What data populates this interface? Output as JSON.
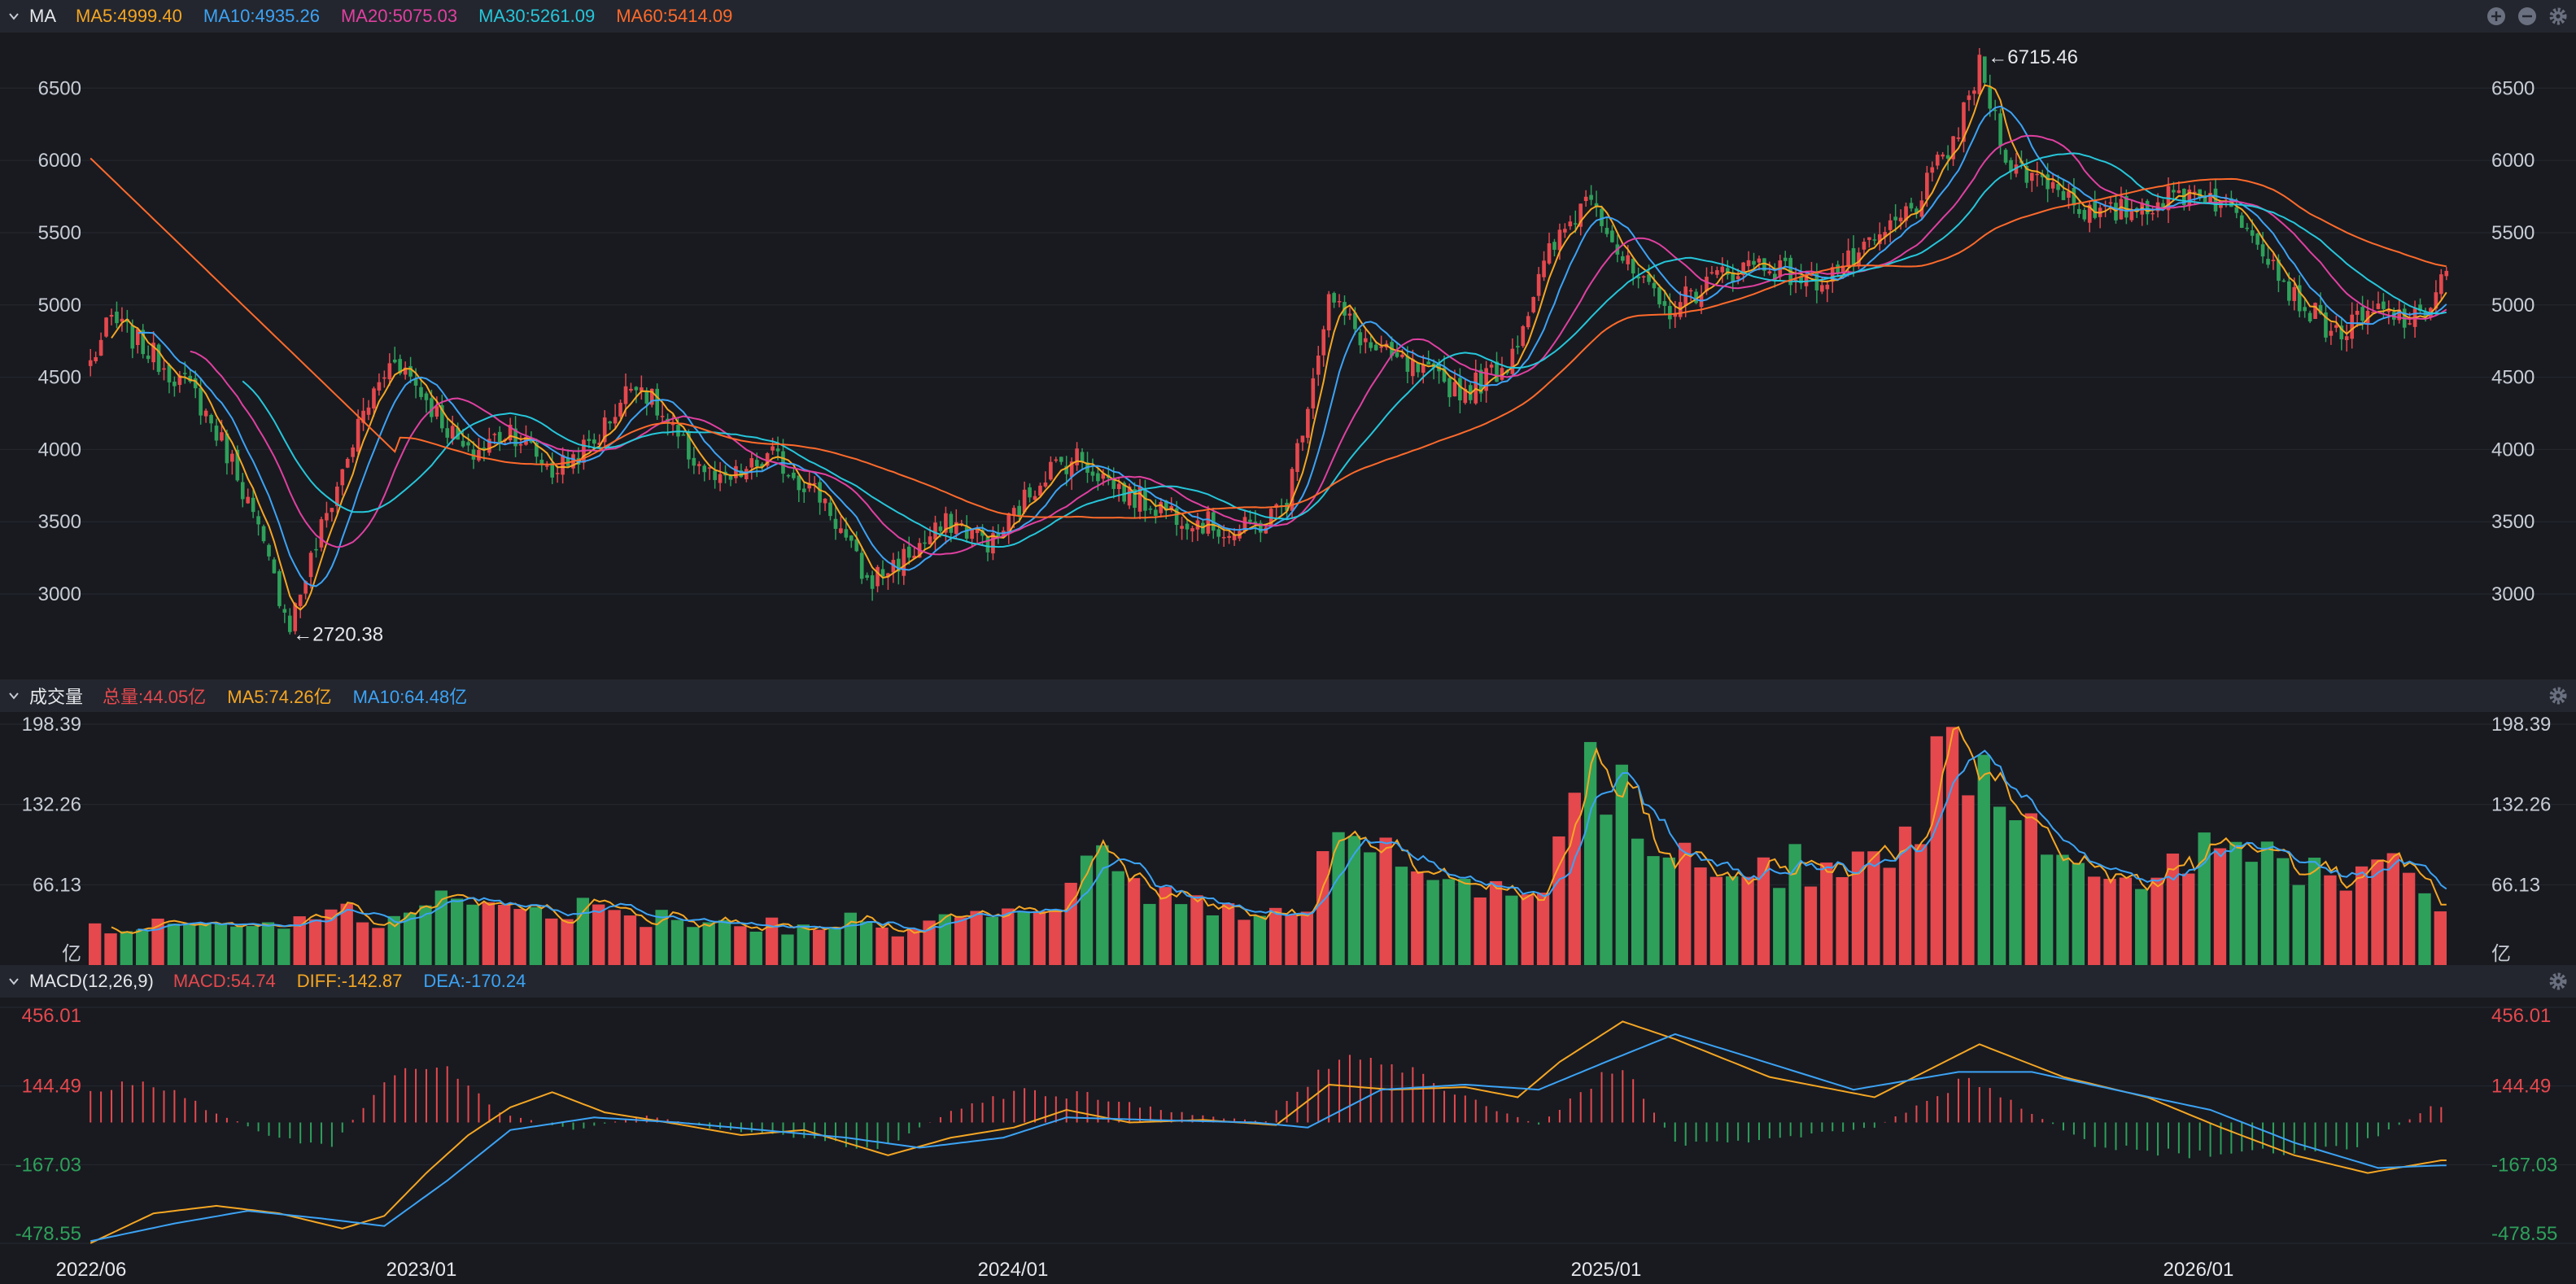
{
  "colors": {
    "bg": "#181a20",
    "bar": "#23262e",
    "grid": "#262931",
    "up": "#e5484d",
    "down": "#2ea05a",
    "text": "#c8ccd4",
    "ma5": "#f5a623",
    "ma10": "#3ca3f5",
    "ma20": "#e040a0",
    "ma30": "#26c6da",
    "ma60": "#ff6a2b",
    "diff": "#f5a623",
    "dea": "#3ca3f5",
    "macd_pos": "#e5484d",
    "macd_neg": "#2ea05a"
  },
  "main_panel": {
    "title": "MA",
    "legend": [
      {
        "label": "MA5:4999.40",
        "color": "#f5a623"
      },
      {
        "label": "MA10:4935.26",
        "color": "#3ca3f5"
      },
      {
        "label": "MA20:5075.03",
        "color": "#e040a0"
      },
      {
        "label": "MA30:5261.09",
        "color": "#26c6da"
      },
      {
        "label": "MA60:5414.09",
        "color": "#ff6a2b"
      }
    ],
    "controls": [
      "plus-icon",
      "minus-icon",
      "gear-icon"
    ],
    "high_label": "←6715.46",
    "low_label": "←2720.38"
  },
  "volume_panel": {
    "title": "成交量",
    "legend": [
      {
        "label": "总量:44.05亿",
        "color": "#e5484d"
      },
      {
        "label": "MA5:74.26亿",
        "color": "#f5a623"
      },
      {
        "label": "MA10:64.48亿",
        "color": "#3ca3f5"
      }
    ],
    "unit": "亿"
  },
  "macd_panel": {
    "title": "MACD(12,26,9)",
    "legend": [
      {
        "label": "MACD:54.74",
        "color": "#e5484d"
      },
      {
        "label": "DIFF:-142.87",
        "color": "#f5a623"
      },
      {
        "label": "DEA:-170.24",
        "color": "#3ca3f5"
      }
    ]
  },
  "chart_data": {
    "type": "candlestick",
    "x_labels": [
      "2022/06",
      "2023/01",
      "2024/01",
      "2025/01",
      "2026/01"
    ],
    "price_axis": {
      "ticks": [
        "6500",
        "6000",
        "5500",
        "5000",
        "4500",
        "4000",
        "3500",
        "3000"
      ],
      "range": [
        2550,
        6800
      ]
    },
    "volume_axis": {
      "ticks": [
        "198.39",
        "132.26",
        "66.13"
      ],
      "range": [
        0,
        198.39
      ]
    },
    "macd_axis": {
      "ticks": [
        "456.01",
        "144.49",
        "-167.03",
        "-478.55"
      ],
      "tick_colors": [
        "#e5484d",
        "#e5484d",
        "#2ea05a",
        "#2ea05a"
      ],
      "range": [
        -478.55,
        456.01
      ]
    },
    "high": 6715.46,
    "low": 2720.38,
    "price_anchors": [
      [
        0,
        4600
      ],
      [
        4,
        4900
      ],
      [
        12,
        4650
      ],
      [
        20,
        4380
      ],
      [
        28,
        3850
      ],
      [
        34,
        3200
      ],
      [
        38,
        2800
      ],
      [
        44,
        3450
      ],
      [
        52,
        4250
      ],
      [
        58,
        4650
      ],
      [
        66,
        4250
      ],
      [
        72,
        3950
      ],
      [
        80,
        4150
      ],
      [
        88,
        3850
      ],
      [
        96,
        4050
      ],
      [
        104,
        4500
      ],
      [
        112,
        4050
      ],
      [
        120,
        3750
      ],
      [
        130,
        3950
      ],
      [
        140,
        3650
      ],
      [
        148,
        3080
      ],
      [
        155,
        3250
      ],
      [
        164,
        3500
      ],
      [
        172,
        3350
      ],
      [
        182,
        3850
      ],
      [
        188,
        3950
      ],
      [
        198,
        3680
      ],
      [
        208,
        3550
      ],
      [
        218,
        3420
      ],
      [
        224,
        3500
      ],
      [
        228,
        3650
      ],
      [
        236,
        5050
      ],
      [
        244,
        4700
      ],
      [
        252,
        4550
      ],
      [
        262,
        4400
      ],
      [
        270,
        4600
      ],
      [
        278,
        5350
      ],
      [
        286,
        5800
      ],
      [
        292,
        5300
      ],
      [
        300,
        4950
      ],
      [
        310,
        5200
      ],
      [
        318,
        5300
      ],
      [
        328,
        5150
      ],
      [
        338,
        5350
      ],
      [
        348,
        5700
      ],
      [
        356,
        6200
      ],
      [
        360,
        6650
      ],
      [
        366,
        5950
      ],
      [
        374,
        5850
      ],
      [
        382,
        5600
      ],
      [
        392,
        5700
      ],
      [
        402,
        5800
      ],
      [
        412,
        5550
      ],
      [
        420,
        5050
      ],
      [
        428,
        4800
      ],
      [
        436,
        4950
      ],
      [
        444,
        4880
      ],
      [
        448,
        5200
      ]
    ],
    "volume_anchors": [
      [
        0,
        28
      ],
      [
        20,
        30
      ],
      [
        36,
        32
      ],
      [
        48,
        48
      ],
      [
        56,
        40
      ],
      [
        64,
        50
      ],
      [
        72,
        55
      ],
      [
        82,
        42
      ],
      [
        96,
        45
      ],
      [
        108,
        38
      ],
      [
        124,
        33
      ],
      [
        140,
        32
      ],
      [
        156,
        37
      ],
      [
        170,
        40
      ],
      [
        182,
        45
      ],
      [
        192,
        90
      ],
      [
        200,
        70
      ],
      [
        210,
        55
      ],
      [
        222,
        45
      ],
      [
        230,
        42
      ],
      [
        236,
        110
      ],
      [
        244,
        85
      ],
      [
        254,
        80
      ],
      [
        264,
        72
      ],
      [
        276,
        60
      ],
      [
        286,
        160
      ],
      [
        294,
        120
      ],
      [
        302,
        85
      ],
      [
        312,
        82
      ],
      [
        322,
        80
      ],
      [
        336,
        85
      ],
      [
        348,
        95
      ],
      [
        356,
        190
      ],
      [
        362,
        140
      ],
      [
        370,
        95
      ],
      [
        382,
        80
      ],
      [
        392,
        75
      ],
      [
        404,
        85
      ],
      [
        416,
        82
      ],
      [
        428,
        75
      ],
      [
        440,
        82
      ],
      [
        448,
        45
      ]
    ],
    "macd_anchors": [
      [
        0,
        130
      ],
      [
        10,
        180
      ],
      [
        22,
        60
      ],
      [
        36,
        -70
      ],
      [
        46,
        -100
      ],
      [
        56,
        180
      ],
      [
        64,
        260
      ],
      [
        70,
        210
      ],
      [
        78,
        40
      ],
      [
        92,
        -30
      ],
      [
        106,
        30
      ],
      [
        120,
        -30
      ],
      [
        136,
        -60
      ],
      [
        150,
        -120
      ],
      [
        164,
        50
      ],
      [
        176,
        130
      ],
      [
        190,
        110
      ],
      [
        210,
        30
      ],
      [
        224,
        5
      ],
      [
        236,
        250
      ],
      [
        248,
        240
      ],
      [
        260,
        120
      ],
      [
        276,
        -10
      ],
      [
        292,
        250
      ],
      [
        302,
        -90
      ],
      [
        320,
        -70
      ],
      [
        340,
        -20
      ],
      [
        358,
        180
      ],
      [
        368,
        60
      ],
      [
        382,
        -95
      ],
      [
        400,
        -135
      ],
      [
        416,
        -125
      ],
      [
        432,
        -100
      ],
      [
        446,
        60
      ]
    ],
    "diff_anchors": [
      [
        0,
        -478
      ],
      [
        12,
        -360
      ],
      [
        24,
        -330
      ],
      [
        36,
        -360
      ],
      [
        48,
        -420
      ],
      [
        56,
        -370
      ],
      [
        64,
        -200
      ],
      [
        72,
        -50
      ],
      [
        80,
        60
      ],
      [
        88,
        120
      ],
      [
        98,
        40
      ],
      [
        110,
        0
      ],
      [
        124,
        -50
      ],
      [
        136,
        -30
      ],
      [
        152,
        -130
      ],
      [
        164,
        -60
      ],
      [
        176,
        -20
      ],
      [
        186,
        50
      ],
      [
        198,
        0
      ],
      [
        212,
        10
      ],
      [
        226,
        -10
      ],
      [
        236,
        150
      ],
      [
        248,
        130
      ],
      [
        262,
        140
      ],
      [
        272,
        100
      ],
      [
        280,
        240
      ],
      [
        292,
        400
      ],
      [
        302,
        330
      ],
      [
        320,
        180
      ],
      [
        340,
        100
      ],
      [
        360,
        310
      ],
      [
        376,
        180
      ],
      [
        392,
        100
      ],
      [
        406,
        -20
      ],
      [
        420,
        -130
      ],
      [
        434,
        -200
      ],
      [
        448,
        -150
      ]
    ],
    "dea_anchors": [
      [
        0,
        -470
      ],
      [
        16,
        -400
      ],
      [
        30,
        -350
      ],
      [
        44,
        -380
      ],
      [
        56,
        -410
      ],
      [
        68,
        -230
      ],
      [
        80,
        -30
      ],
      [
        96,
        20
      ],
      [
        112,
        0
      ],
      [
        128,
        -30
      ],
      [
        144,
        -60
      ],
      [
        158,
        -100
      ],
      [
        174,
        -60
      ],
      [
        186,
        20
      ],
      [
        202,
        10
      ],
      [
        222,
        0
      ],
      [
        232,
        -20
      ],
      [
        246,
        130
      ],
      [
        262,
        150
      ],
      [
        276,
        130
      ],
      [
        290,
        250
      ],
      [
        302,
        350
      ],
      [
        316,
        260
      ],
      [
        336,
        130
      ],
      [
        356,
        200
      ],
      [
        370,
        200
      ],
      [
        388,
        120
      ],
      [
        404,
        50
      ],
      [
        420,
        -80
      ],
      [
        436,
        -180
      ],
      [
        448,
        -170
      ]
    ]
  }
}
